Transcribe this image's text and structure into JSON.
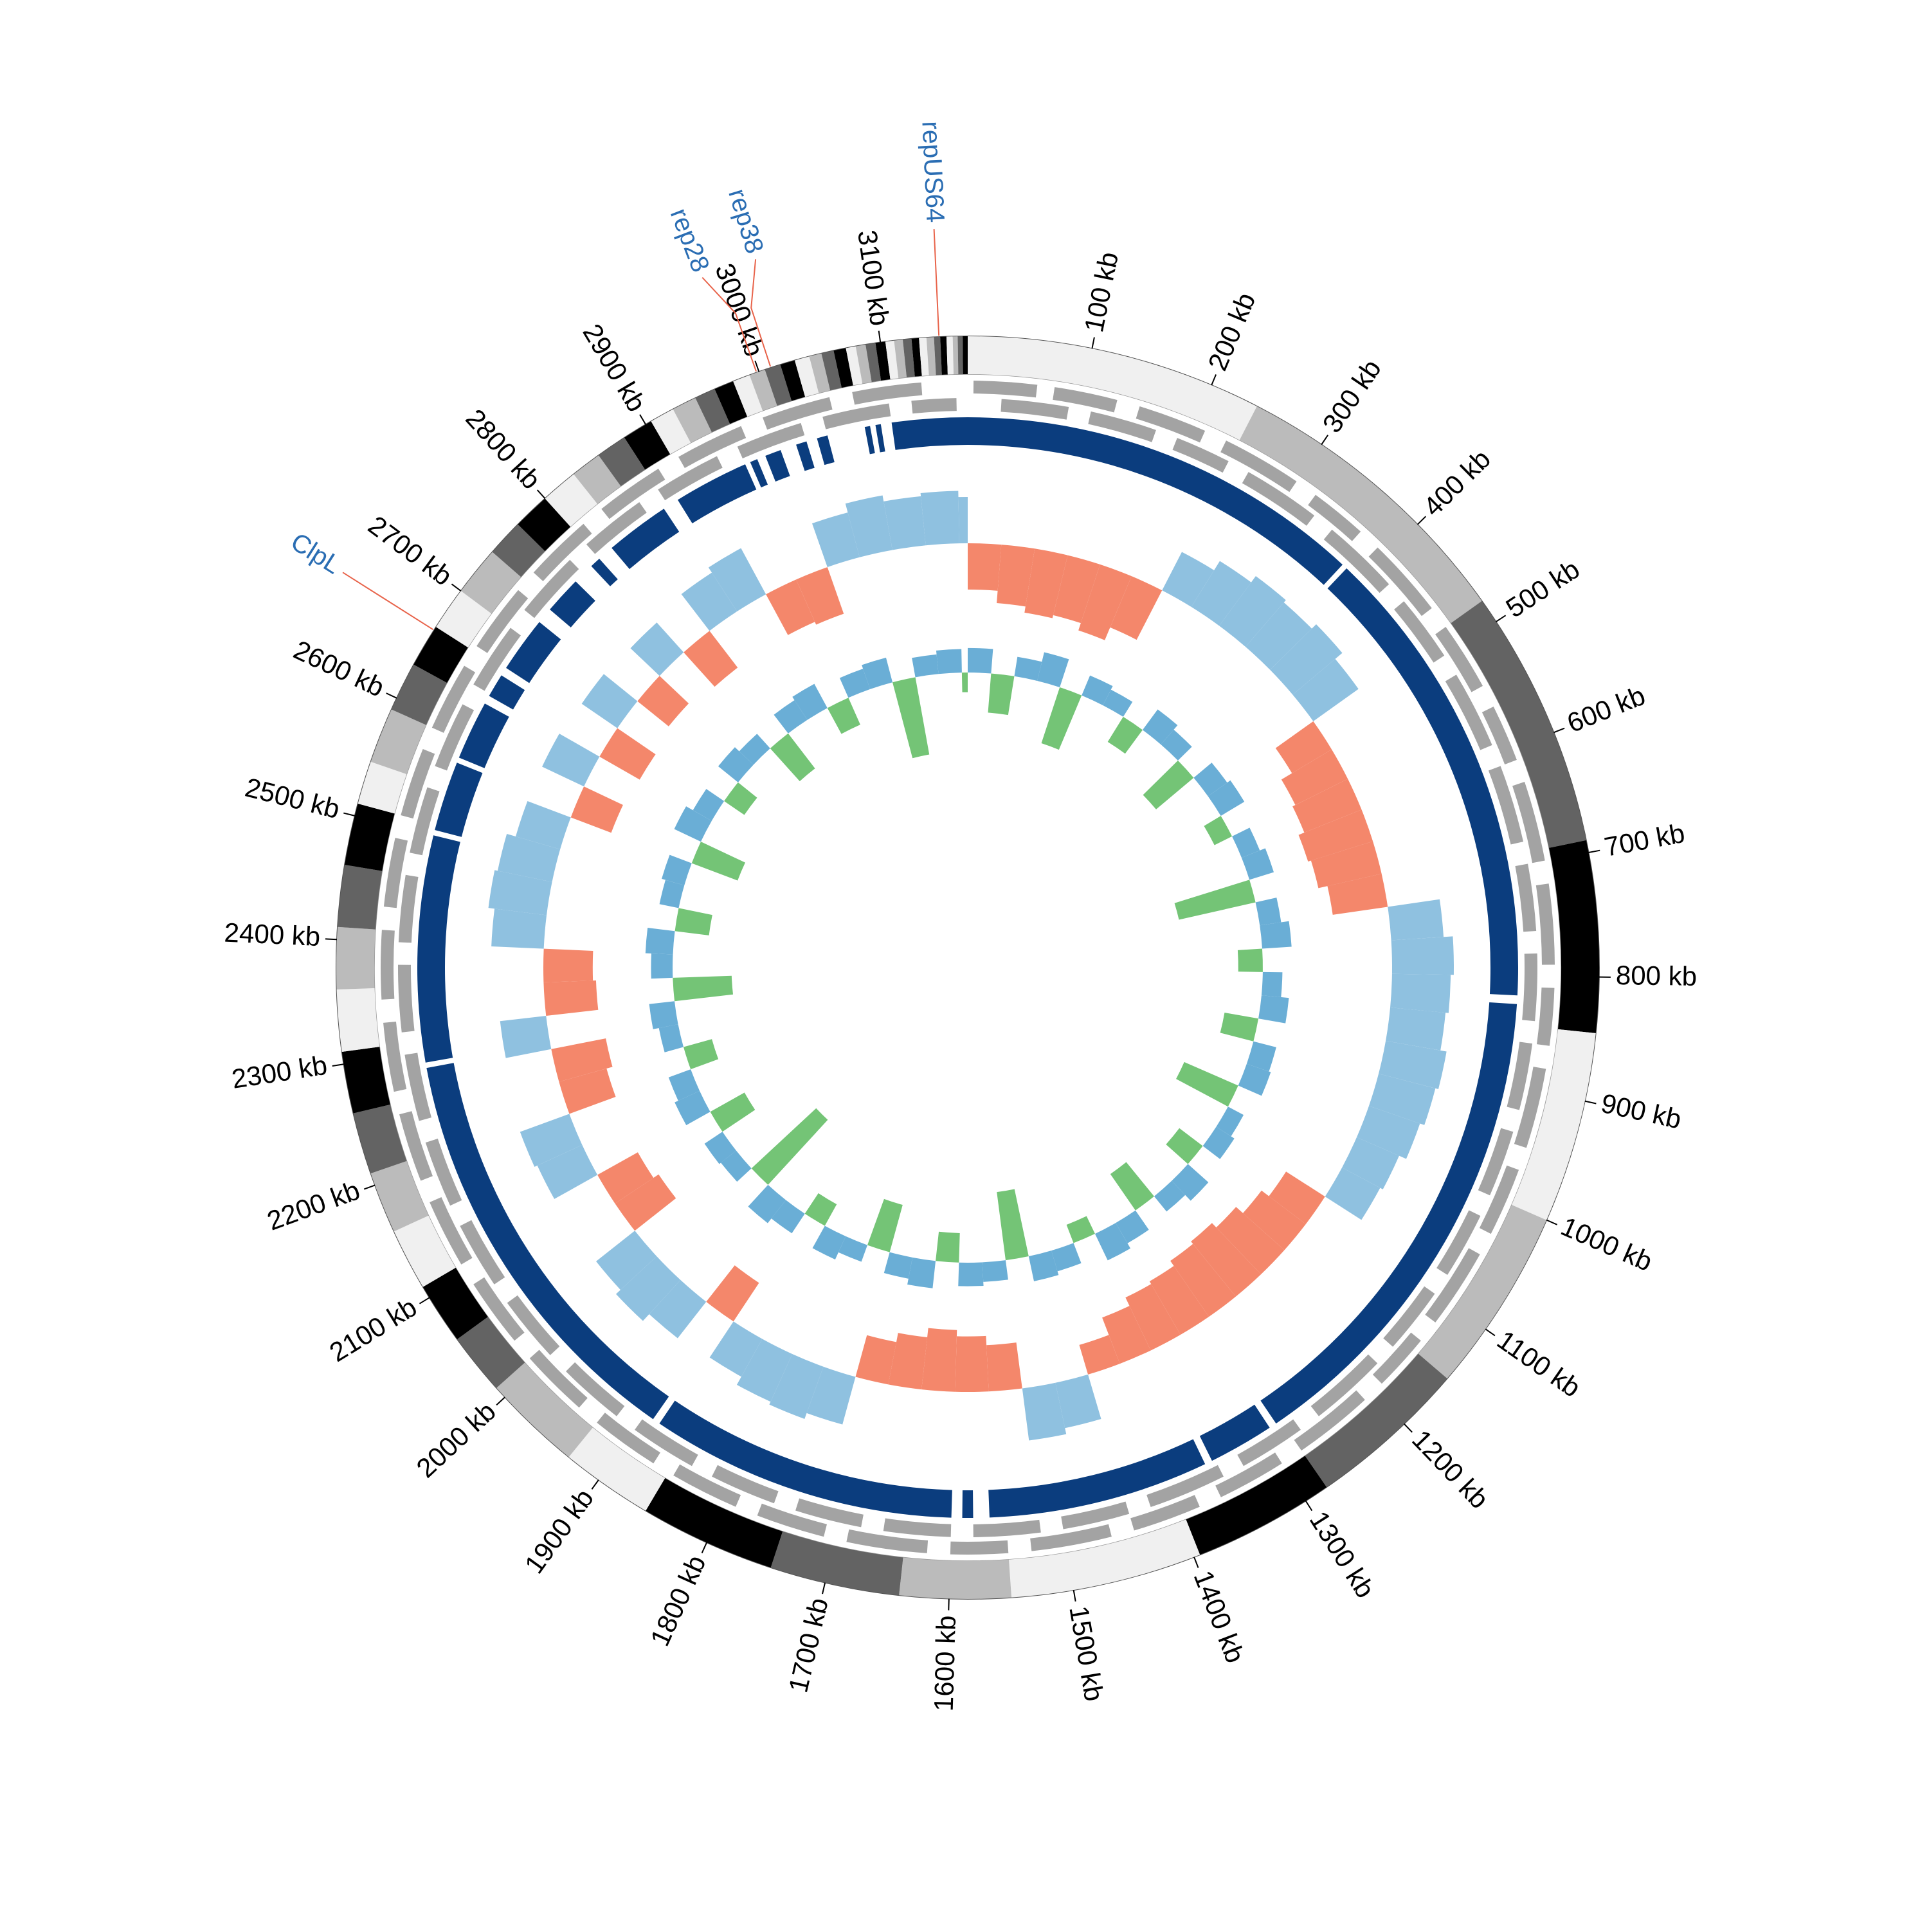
{
  "chart_data": {
    "type": "circos",
    "xlim": [
      0,
      3170
    ],
    "xticks": [
      {
        "value": 100,
        "label": "100 kb"
      },
      {
        "value": 200,
        "label": "200 kb"
      },
      {
        "value": 300,
        "label": "300 kb"
      },
      {
        "value": 400,
        "label": "400 kb"
      },
      {
        "value": 500,
        "label": "500 kb"
      },
      {
        "value": 600,
        "label": "600 kb"
      },
      {
        "value": 700,
        "label": "700 kb"
      },
      {
        "value": 800,
        "label": "800 kb"
      },
      {
        "value": 900,
        "label": "900 kb"
      },
      {
        "value": 1000,
        "label": "1000 kb"
      },
      {
        "value": 1100,
        "label": "1100 kb"
      },
      {
        "value": 1200,
        "label": "1200 kb"
      },
      {
        "value": 1300,
        "label": "1300 kb"
      },
      {
        "value": 1400,
        "label": "1400 kb"
      },
      {
        "value": 1500,
        "label": "1500 kb"
      },
      {
        "value": 1600,
        "label": "1600 kb"
      },
      {
        "value": 1700,
        "label": "1700 kb"
      },
      {
        "value": 1800,
        "label": "1800 kb"
      },
      {
        "value": 1900,
        "label": "1900 kb"
      },
      {
        "value": 2000,
        "label": "2000 kb"
      },
      {
        "value": 2100,
        "label": "2100 kb"
      },
      {
        "value": 2200,
        "label": "2200 kb"
      },
      {
        "value": 2300,
        "label": "2300 kb"
      },
      {
        "value": 2400,
        "label": "2400 kb"
      },
      {
        "value": 2500,
        "label": "2500 kb"
      },
      {
        "value": 2600,
        "label": "2600 kb"
      },
      {
        "value": 2700,
        "label": "2700 kb"
      },
      {
        "value": 2800,
        "label": "2800 kb"
      },
      {
        "value": 2900,
        "label": "2900 kb"
      },
      {
        "value": 3000,
        "label": "3000 kb"
      },
      {
        "value": 3100,
        "label": "3100 kb"
      }
    ],
    "contigs": {
      "colors": [
        "#f0f0f0",
        "#bbbbbb",
        "#636363",
        "#000000"
      ],
      "ends": [
        240,
        480,
        690,
        845,
        1000,
        1150,
        1280,
        1395,
        1550,
        1640,
        1745,
        1855,
        1930,
        2010,
        2060,
        2110,
        2160,
        2210,
        2260,
        2310,
        2360,
        2410,
        2460,
        2510,
        2545,
        2590,
        2630,
        2665,
        2700,
        2740,
        2770,
        2800,
        2830,
        2855,
        2880,
        2905,
        2925,
        2945,
        2962,
        2978,
        2992,
        3005,
        3018,
        3030,
        3042,
        3052,
        3062,
        3072,
        3080,
        3088,
        3096,
        3104,
        3111,
        3118,
        3125,
        3131,
        3137,
        3143,
        3148,
        3153,
        3158,
        3162,
        3166,
        3170
      ]
    },
    "genes": {
      "color": "#a3a3a3",
      "forward": [
        [
          5,
          60
        ],
        [
          75,
          130
        ],
        [
          150,
          210
        ],
        [
          230,
          300
        ],
        [
          320,
          370
        ],
        [
          390,
          460
        ],
        [
          480,
          540
        ],
        [
          560,
          610
        ],
        [
          630,
          700
        ],
        [
          720,
          790
        ],
        [
          810,
          860
        ],
        [
          880,
          950
        ],
        [
          970,
          1030
        ],
        [
          1050,
          1120
        ],
        [
          1140,
          1190
        ],
        [
          1210,
          1280
        ],
        [
          1300,
          1360
        ],
        [
          1380,
          1440
        ],
        [
          1460,
          1530
        ],
        [
          1550,
          1600
        ],
        [
          1620,
          1690
        ],
        [
          1710,
          1770
        ],
        [
          1790,
          1850
        ],
        [
          1870,
          1930
        ],
        [
          1950,
          2010
        ],
        [
          2030,
          2090
        ],
        [
          2110,
          2170
        ],
        [
          2190,
          2250
        ],
        [
          2270,
          2330
        ],
        [
          2350,
          2410
        ],
        [
          2430,
          2490
        ],
        [
          2510,
          2570
        ],
        [
          2590,
          2650
        ],
        [
          2670,
          2730
        ],
        [
          2750,
          2810
        ],
        [
          2830,
          2890
        ],
        [
          2910,
          2970
        ],
        [
          2990,
          3050
        ],
        [
          3070,
          3130
        ]
      ],
      "reverse": [
        [
          30,
          90
        ],
        [
          110,
          170
        ],
        [
          190,
          240
        ],
        [
          260,
          330
        ],
        [
          350,
          420
        ],
        [
          440,
          500
        ],
        [
          520,
          590
        ],
        [
          610,
          680
        ],
        [
          700,
          760
        ],
        [
          780,
          840
        ],
        [
          860,
          920
        ],
        [
          940,
          1000
        ],
        [
          1020,
          1080
        ],
        [
          1100,
          1160
        ],
        [
          1180,
          1250
        ],
        [
          1270,
          1330
        ],
        [
          1350,
          1420
        ],
        [
          1440,
          1500
        ],
        [
          1520,
          1580
        ],
        [
          1600,
          1660
        ],
        [
          1680,
          1740
        ],
        [
          1760,
          1820
        ],
        [
          1840,
          1900
        ],
        [
          1920,
          1980
        ],
        [
          2000,
          2060
        ],
        [
          2080,
          2140
        ],
        [
          2160,
          2220
        ],
        [
          2240,
          2300
        ],
        [
          2320,
          2380
        ],
        [
          2400,
          2460
        ],
        [
          2480,
          2540
        ],
        [
          2560,
          2620
        ],
        [
          2640,
          2700
        ],
        [
          2720,
          2780
        ],
        [
          2800,
          2860
        ],
        [
          2880,
          2940
        ],
        [
          2960,
          3020
        ],
        [
          3040,
          3100
        ],
        [
          3120,
          3160
        ]
      ]
    },
    "alignment": {
      "color": "#0b3d7e",
      "blocks": [
        [
          0,
          378
        ],
        [
          383,
          818
        ],
        [
          826,
          1285
        ],
        [
          1292,
          1353
        ],
        [
          1360,
          1565
        ],
        [
          1580,
          1590
        ],
        [
          1600,
          1885
        ],
        [
          1892,
          2285
        ],
        [
          2290,
          2500
        ],
        [
          2505,
          2570
        ],
        [
          2575,
          2630
        ],
        [
          2638,
          2660
        ],
        [
          2668,
          2720
        ],
        [
          2735,
          2770
        ],
        [
          2790,
          2800
        ],
        [
          2815,
          2875
        ],
        [
          2890,
          2960
        ],
        [
          2965,
          2972
        ],
        [
          2980,
          2995
        ],
        [
          3010,
          3020
        ],
        [
          3030,
          3040
        ],
        [
          3075,
          3080
        ],
        [
          3085,
          3090
        ],
        [
          3100,
          3170
        ]
      ]
    },
    "windows": [
      0,
      40,
      80,
      120,
      160,
      200,
      240,
      280,
      320,
      360,
      400,
      440,
      480,
      520,
      560,
      600,
      640,
      680,
      720,
      760,
      800,
      840,
      880,
      920,
      960,
      1000,
      1040,
      1080,
      1120,
      1160,
      1200,
      1240,
      1280,
      1320,
      1360,
      1400,
      1440,
      1480,
      1520,
      1560,
      1600,
      1640,
      1680,
      1720,
      1760,
      1800,
      1840,
      1880,
      1920,
      1960,
      2000,
      2040,
      2080,
      2120,
      2160,
      2200,
      2240,
      2280,
      2320,
      2360,
      2400,
      2440,
      2480,
      2520,
      2560,
      2600,
      2640,
      2680,
      2720,
      2760,
      2800,
      2840,
      2880,
      2920,
      2960,
      3000,
      3040,
      3080,
      3120,
      3160
    ],
    "skew": {
      "positive_color": "#8fc1e0",
      "negative_color": "#f4876b",
      "ylim": [
        -0.05,
        0.05
      ],
      "values": [
        -0.03,
        -0.038,
        -0.042,
        -0.04,
        -0.045,
        -0.036,
        0.028,
        0.035,
        0.04,
        0.038,
        0.042,
        0.036,
        -0.03,
        -0.038,
        -0.04,
        -0.044,
        -0.042,
        -0.036,
        0.034,
        0.04,
        0.038,
        0.036,
        0.04,
        0.038,
        0.035,
        0.03,
        0.028,
        -0.03,
        -0.036,
        -0.042,
        -0.046,
        -0.044,
        -0.04,
        -0.038,
        -0.032,
        -0.02,
        0.03,
        0.034,
        -0.03,
        -0.036,
        -0.04,
        -0.034,
        -0.028,
        0.032,
        0.036,
        0.034,
        0.028,
        -0.03,
        0.03,
        0.036,
        0.032,
        -0.034,
        -0.03,
        0.032,
        0.034,
        -0.032,
        -0.036,
        0.03,
        -0.034,
        -0.032,
        0.034,
        0.038,
        0.036,
        0.03,
        -0.028,
        0.03,
        -0.03,
        0.028,
        -0.026,
        0.026,
        -0.03,
        0.03,
        0.034,
        -0.03,
        -0.032,
        0.03,
        0.036,
        0.032,
        0.034,
        0.03
      ]
    },
    "gc": {
      "positive_color": "#6aaed6",
      "negative_color": "#74c476",
      "ylim": [
        -0.15,
        0.04
      ],
      "values": [
        0.025,
        -0.04,
        0.02,
        0.03,
        -0.06,
        0.022,
        0.018,
        -0.03,
        0.026,
        0.02,
        -0.05,
        0.024,
        0.028,
        -0.02,
        0.02,
        0.026,
        -0.08,
        0.022,
        0.03,
        -0.025,
        0.02,
        0.028,
        -0.035,
        0.024,
        0.026,
        -0.06,
        0.018,
        0.022,
        -0.03,
        0.028,
        0.02,
        -0.045,
        0.024,
        0.03,
        -0.02,
        0.022,
        0.026,
        -0.07,
        0.02,
        0.024,
        -0.03,
        0.028,
        0.022,
        -0.05,
        0.018,
        0.026,
        -0.025,
        0.024,
        0.03,
        -0.09,
        0.02,
        0.022,
        -0.04,
        0.028,
        0.024,
        -0.03,
        0.02,
        0.026,
        -0.06,
        0.022,
        0.028,
        -0.035,
        0.02,
        0.024,
        -0.05,
        0.03,
        0.022,
        -0.025,
        0.026,
        0.02,
        -0.045,
        0.024,
        0.028,
        -0.03,
        0.022,
        0.026,
        -0.08,
        0.02,
        0.024,
        -0.02
      ]
    },
    "annotations": [
      {
        "label": "repUS64",
        "position": 3147,
        "label_color": "#2a6db3",
        "line_color": "#e8634a"
      },
      {
        "label": "rep38",
        "position": 3010,
        "label_color": "#2a6db3",
        "line_color": "#e8634a"
      },
      {
        "label": "rep28",
        "position": 2998,
        "label_color": "#2a6db3",
        "line_color": "#e8634a"
      },
      {
        "label": "ClpL",
        "position": 2662,
        "label_color": "#2a6db3",
        "line_color": "#e8634a"
      }
    ]
  }
}
